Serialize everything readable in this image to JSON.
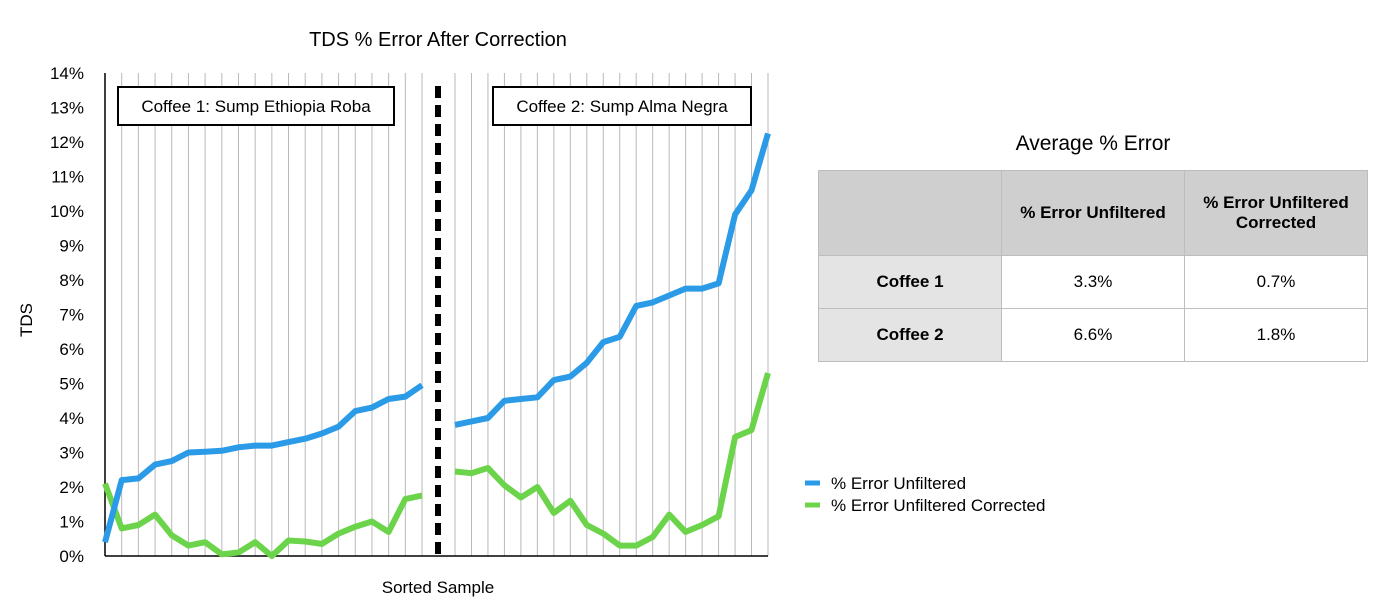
{
  "chart_data": {
    "type": "line",
    "title": "TDS % Error After Correction",
    "xlabel": "Sorted Sample",
    "ylabel": "TDS",
    "ylim": [
      0,
      14
    ],
    "yticks": [
      "0%",
      "1%",
      "2%",
      "3%",
      "4%",
      "5%",
      "6%",
      "7%",
      "8%",
      "9%",
      "10%",
      "11%",
      "12%",
      "13%",
      "14%"
    ],
    "grid": "vertical",
    "legend": "right",
    "groups": [
      {
        "label": "Coffee 1: Sump Ethiopia Roba",
        "series": [
          {
            "name": "% Error Unfiltered",
            "color": "#2b9be8",
            "values": [
              0.4,
              2.2,
              2.25,
              2.65,
              2.75,
              3.0,
              3.02,
              3.05,
              3.15,
              3.2,
              3.2,
              3.3,
              3.4,
              3.55,
              3.75,
              4.2,
              4.3,
              4.55,
              4.62,
              4.95
            ]
          },
          {
            "name": "% Error Unfiltered Corrected",
            "color": "#6cd44b",
            "values": [
              2.1,
              0.8,
              0.9,
              1.2,
              0.6,
              0.3,
              0.4,
              0.05,
              0.1,
              0.4,
              0.0,
              0.45,
              0.42,
              0.35,
              0.65,
              0.85,
              1.0,
              0.7,
              1.65,
              1.75
            ]
          }
        ]
      },
      {
        "label": "Coffee 2: Sump Alma Negra",
        "series": [
          {
            "name": "% Error Unfiltered",
            "color": "#2b9be8",
            "values": [
              3.8,
              3.9,
              4.0,
              4.5,
              4.55,
              4.6,
              5.1,
              5.2,
              5.6,
              6.2,
              6.35,
              7.25,
              7.35,
              7.55,
              7.75,
              7.75,
              7.9,
              9.9,
              10.6,
              12.25
            ]
          },
          {
            "name": "% Error Unfiltered Corrected",
            "color": "#6cd44b",
            "values": [
              2.45,
              2.4,
              2.55,
              2.05,
              1.7,
              2.0,
              1.25,
              1.6,
              0.9,
              0.65,
              0.3,
              0.3,
              0.55,
              1.2,
              0.7,
              0.9,
              1.15,
              3.45,
              3.65,
              5.3
            ]
          }
        ]
      }
    ],
    "legend_entries": [
      {
        "name": "% Error Unfiltered",
        "color": "#2b9be8"
      },
      {
        "name": "% Error Unfiltered Corrected",
        "color": "#6cd44b"
      }
    ]
  },
  "summary_table": {
    "title": "Average % Error",
    "headers": [
      "",
      "% Error Unfiltered",
      "% Error Unfiltered Corrected"
    ],
    "rows": [
      {
        "label": "Coffee 1",
        "unfiltered": "3.3%",
        "corrected": "0.7%"
      },
      {
        "label": "Coffee 2",
        "unfiltered": "6.6%",
        "corrected": "1.8%"
      }
    ]
  }
}
